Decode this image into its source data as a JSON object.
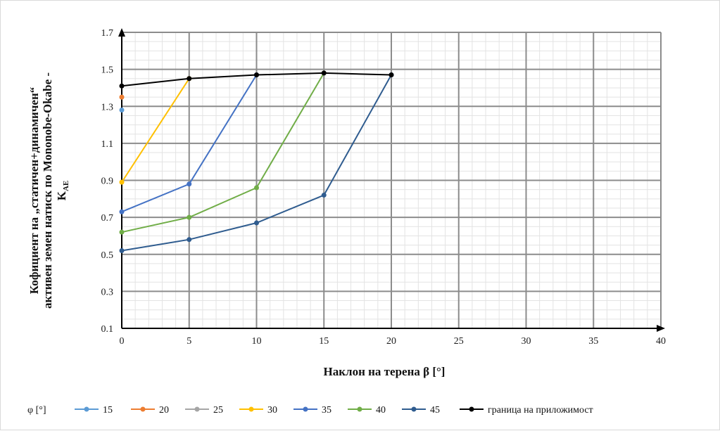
{
  "chart_data": {
    "type": "line",
    "xlabel": "Наклон на терена β [°]",
    "ylabel_lines": [
      "Кофициент на „статичен+динамичен“",
      "активен земен натиск по Mononobe-Okabe -"
    ],
    "ylabel_symbol": "K",
    "ylabel_subscript": "AE",
    "xlim": [
      0,
      40
    ],
    "ylim": [
      0.1,
      1.7
    ],
    "x_ticks": [
      "0",
      "5",
      "10",
      "15",
      "20",
      "25",
      "30",
      "35",
      "40"
    ],
    "y_ticks": [
      "0.1",
      "0.3",
      "0.5",
      "0.7",
      "0.9",
      "1.1",
      "1.3",
      "1.5",
      "1.7"
    ],
    "grid": true,
    "legend_position": "bottom",
    "legend_title": "φ [°]",
    "series": [
      {
        "name": "15",
        "color": "#5B9BD5",
        "x": [
          0
        ],
        "y": [
          1.28
        ]
      },
      {
        "name": "20",
        "color": "#ED7D31",
        "x": [
          0
        ],
        "y": [
          1.35
        ]
      },
      {
        "name": "25",
        "color": "#A5A5A5",
        "x": [
          0
        ],
        "y": [
          1.41
        ]
      },
      {
        "name": "30",
        "color": "#FFC000",
        "x": [
          0,
          5
        ],
        "y": [
          0.89,
          1.45
        ]
      },
      {
        "name": "35",
        "color": "#4472C4",
        "x": [
          0,
          5,
          10
        ],
        "y": [
          0.73,
          0.88,
          1.47
        ]
      },
      {
        "name": "40",
        "color": "#70AD47",
        "x": [
          0,
          5,
          10,
          15
        ],
        "y": [
          0.62,
          0.7,
          0.86,
          1.48
        ]
      },
      {
        "name": "45",
        "color": "#2F5C8F",
        "x": [
          0,
          5,
          10,
          15,
          20
        ],
        "y": [
          0.52,
          0.58,
          0.67,
          0.82,
          1.47
        ]
      },
      {
        "name": "граница на приложимост",
        "color": "#000000",
        "x": [
          0,
          5,
          10,
          15,
          20
        ],
        "y": [
          1.41,
          1.45,
          1.47,
          1.48,
          1.47
        ]
      }
    ]
  }
}
